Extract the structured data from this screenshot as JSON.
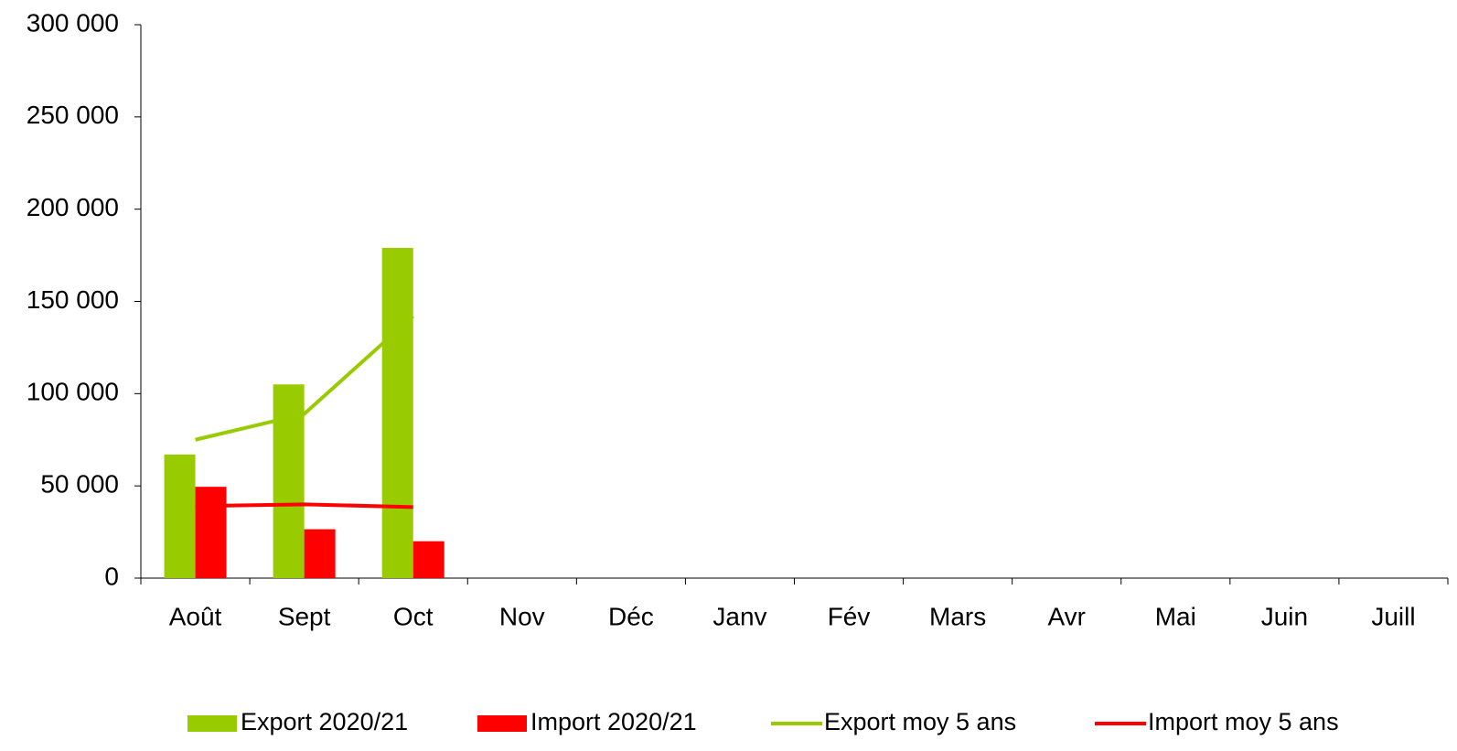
{
  "chart_data": {
    "type": "bar",
    "categories": [
      "Août",
      "Sept",
      "Oct",
      "Nov",
      "Déc",
      "Janv",
      "Fév",
      "Mars",
      "Avr",
      "Mai",
      "Juin",
      "Juill"
    ],
    "series": [
      {
        "name": "Export 2020/21",
        "type": "bar",
        "color": "#99cc00",
        "values": [
          67000,
          105000,
          179000,
          null,
          null,
          null,
          null,
          null,
          null,
          null,
          null,
          null
        ]
      },
      {
        "name": "Import 2020/21",
        "type": "bar",
        "color": "#ff0000",
        "values": [
          49500,
          26500,
          20000,
          null,
          null,
          null,
          null,
          null,
          null,
          null,
          null,
          null
        ]
      },
      {
        "name": "Export moy 5 ans",
        "type": "line",
        "color": "#99cc00",
        "values": [
          75000,
          89000,
          142000,
          null,
          null,
          null,
          null,
          null,
          null,
          null,
          null,
          null
        ]
      },
      {
        "name": "Import moy 5 ans",
        "type": "line",
        "color": "#ff0000",
        "values": [
          39000,
          40000,
          38500,
          null,
          null,
          null,
          null,
          null,
          null,
          null,
          null,
          null
        ]
      }
    ],
    "ylim": [
      0,
      300000
    ],
    "yticks": [
      0,
      {
        "value": 50000,
        "label": "50 000"
      },
      {
        "value": 100000,
        "label": "100 000"
      },
      {
        "value": 150000,
        "label": "150 000"
      },
      {
        "value": 200000,
        "label": "200 000"
      },
      {
        "value": 250000,
        "label": "250 000"
      },
      {
        "value": 300000,
        "label": "300 000"
      }
    ],
    "grid": false,
    "legend": "bottom"
  }
}
